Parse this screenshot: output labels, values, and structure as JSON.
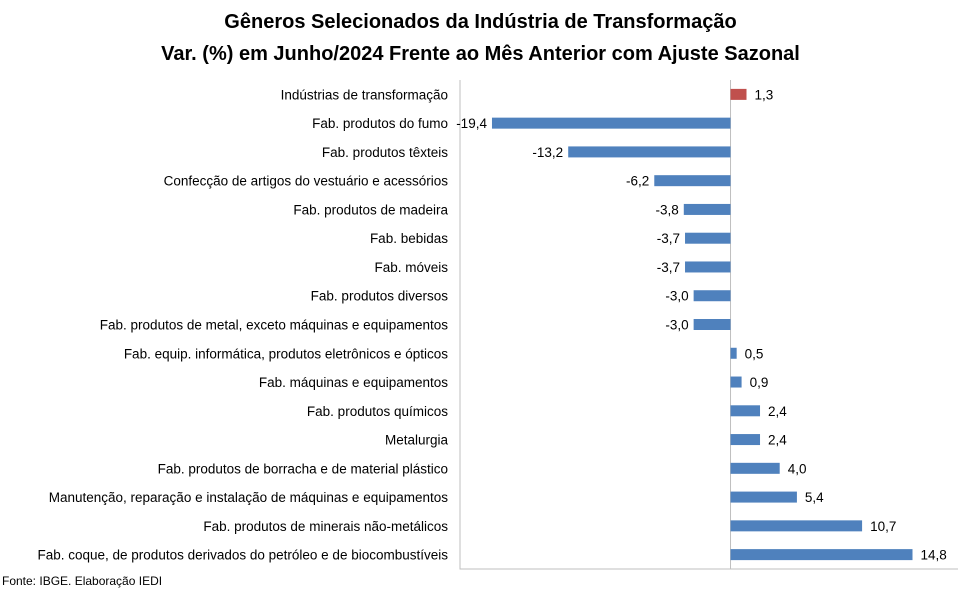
{
  "title": "Gêneros Selecionados da Indústria de Transformação",
  "subtitle": "Var. (%) em Junho/2024 Frente ao Mês Anterior com Ajuste Sazonal",
  "source": "Fonte: IBGE. Elaboração IEDI",
  "colors": {
    "positive_highlight": "#C0504D",
    "bar": "#4F81BD",
    "axis": "#BFBFBF"
  },
  "chart_data": {
    "type": "bar",
    "orientation": "horizontal",
    "title": "Gêneros Selecionados da Indústria de Transformação",
    "subtitle": "Var. (%) em Junho/2024 Frente ao Mês Anterior com Ajuste Sazonal",
    "categories": [
      "Indústrias de transformação",
      "Fab. produtos do fumo",
      "Fab. produtos têxteis",
      "Confecção de artigos do vestuário e acessórios",
      "Fab. produtos de madeira",
      "Fab. bebidas",
      "Fab. móveis",
      "Fab. produtos diversos",
      "Fab. produtos de metal, exceto máquinas e equipamentos",
      "Fab. equip. informática, produtos eletrônicos e ópticos",
      "Fab. máquinas e equipamentos",
      "Fab. produtos químicos",
      "Metalurgia",
      "Fab. produtos de borracha e de material plástico",
      "Manutenção, reparação e instalação de máquinas e equipamentos",
      "Fab. produtos de minerais não-metálicos",
      "Fab. coque, de produtos derivados do petróleo e de biocombustíveis"
    ],
    "values": [
      1.3,
      -19.4,
      -13.2,
      -6.2,
      -3.8,
      -3.7,
      -3.7,
      -3.0,
      -3.0,
      0.5,
      0.9,
      2.4,
      2.4,
      4.0,
      5.4,
      10.7,
      14.8
    ],
    "value_labels": [
      "1,3",
      "-19,4",
      "-13,2",
      "-6,2",
      "-3,8",
      "-3,7",
      "-3,7",
      "-3,0",
      "-3,0",
      "0,5",
      "0,9",
      "2,4",
      "2,4",
      "4,0",
      "5,4",
      "10,7",
      "14,8"
    ],
    "highlight_index": 0,
    "xlim": [
      -22,
      18.5
    ],
    "grid": false,
    "legend": "none"
  }
}
